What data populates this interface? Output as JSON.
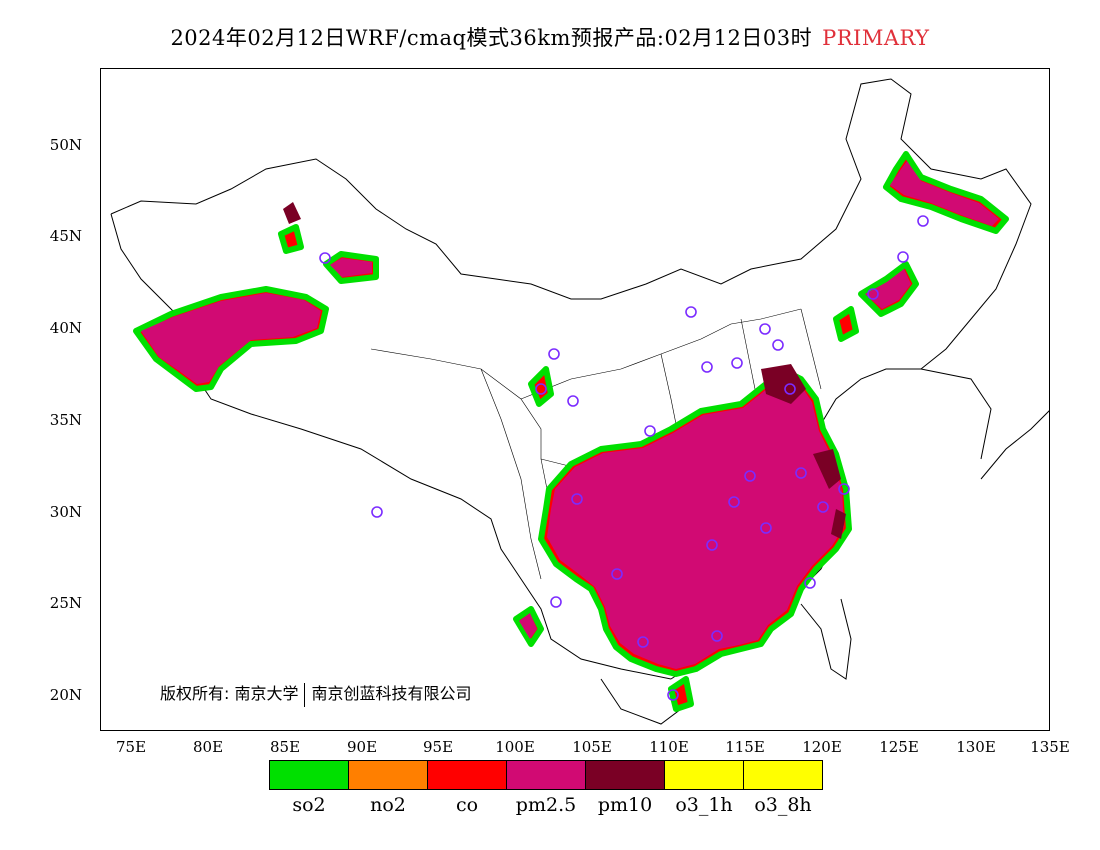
{
  "title": {
    "main": "2024年02月12日WRF/cmaq模式36km预报产品:02月12日03时",
    "tag": "PRIMARY"
  },
  "axes": {
    "lat_ticks": [
      "50N",
      "45N",
      "40N",
      "35N",
      "30N",
      "25N",
      "20N"
    ],
    "lon_ticks": [
      "75E",
      "80E",
      "85E",
      "90E",
      "95E",
      "100E",
      "105E",
      "110E",
      "115E",
      "120E",
      "125E",
      "130E",
      "135E"
    ]
  },
  "copyright": {
    "left": "版权所有: 南京大学",
    "right": "南京创蓝科技有限公司"
  },
  "legend": [
    {
      "label": "so2",
      "color": "#00e000"
    },
    {
      "label": "no2",
      "color": "#ff7f00"
    },
    {
      "label": "co",
      "color": "#ff0000"
    },
    {
      "label": "pm2.5",
      "color": "#d10a73"
    },
    {
      "label": "pm10",
      "color": "#7a0025"
    },
    {
      "label": "o3_1h",
      "color": "#ffff00"
    },
    {
      "label": "o3_8h",
      "color": "#ffff00"
    }
  ],
  "map": {
    "extent": {
      "lon": [
        73,
        135
      ],
      "lat": [
        18,
        54
      ]
    },
    "colors": {
      "primary_pm25": "#d10a73",
      "pm10": "#7a0025",
      "edge_red": "#ff0000",
      "edge_orange": "#ff7f00",
      "edge_green": "#00e000",
      "station": "#7b2cff"
    }
  }
}
